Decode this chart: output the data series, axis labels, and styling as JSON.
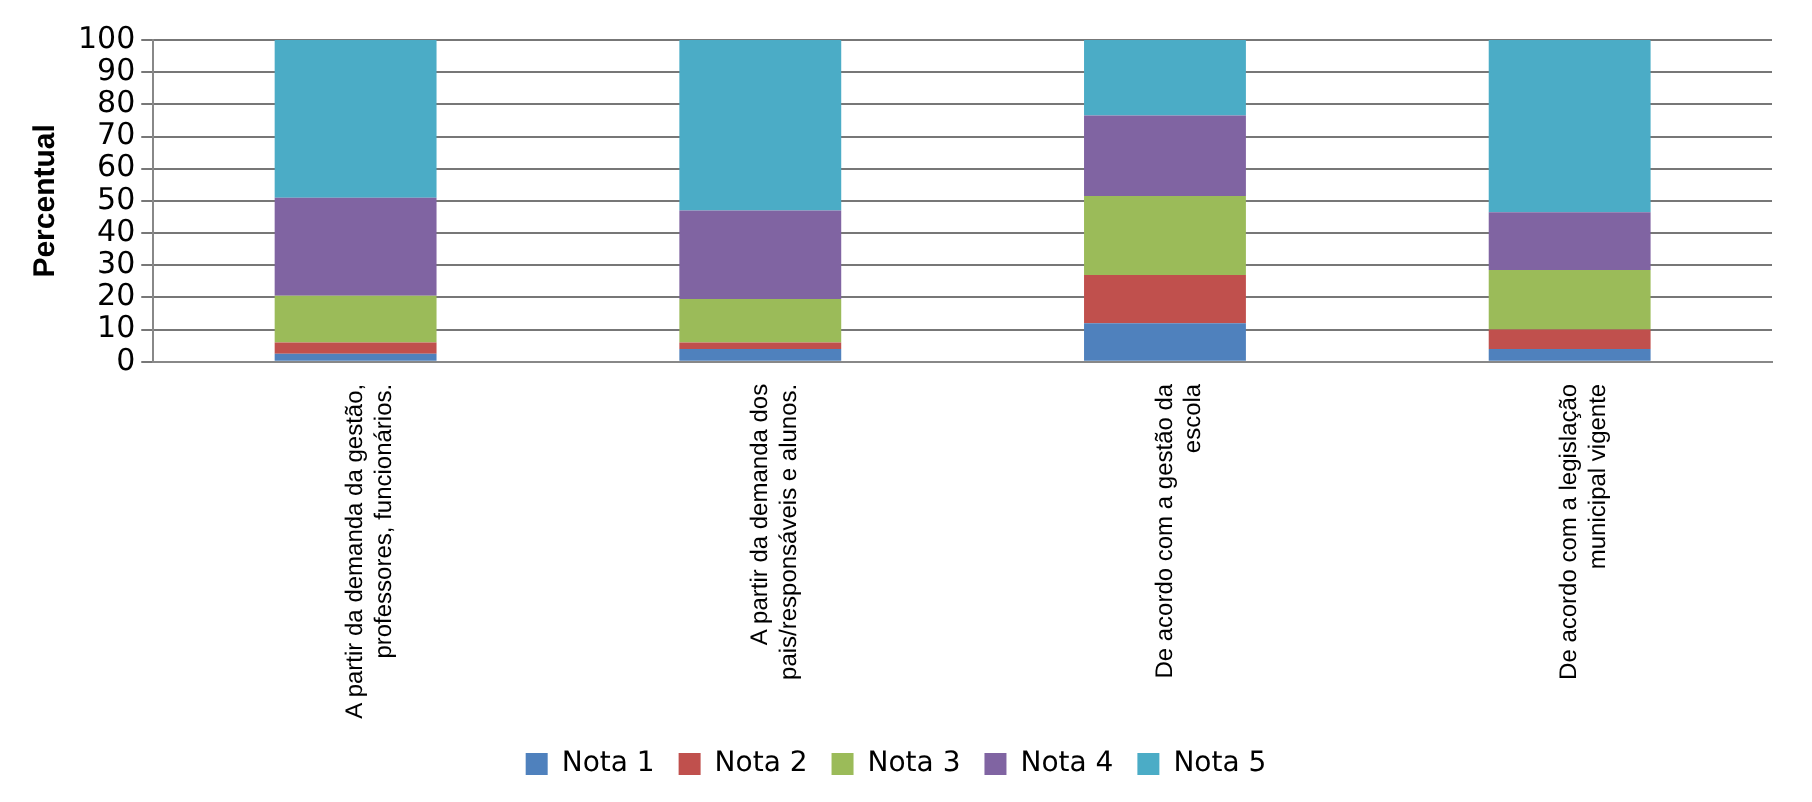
{
  "chart_data": {
    "type": "bar",
    "stacked": true,
    "ylabel": "Percentual",
    "categories": [
      "A partir da demanda da gestão, professores, funcionários.",
      "A partir da demanda dos pais/responsáveis e alunos.",
      "De acordo com a gestão da escola",
      "De acordo com a legislação municipal vigente"
    ],
    "series": [
      {
        "name": "Nota 1",
        "color": "#4f81bd",
        "values": [
          2.5,
          4,
          12,
          4
        ]
      },
      {
        "name": "Nota 2",
        "color": "#c0504d",
        "values": [
          3.5,
          2,
          15,
          6
        ]
      },
      {
        "name": "Nota 3",
        "color": "#9bbb59",
        "values": [
          14.5,
          13.5,
          24.5,
          18.5
        ]
      },
      {
        "name": "Nota 4",
        "color": "#8064a2",
        "values": [
          30.5,
          27.5,
          25,
          18
        ]
      },
      {
        "name": "Nota 5",
        "color": "#4bacc6",
        "values": [
          49,
          53,
          23.5,
          53.5
        ]
      }
    ],
    "ylim": [
      0,
      100
    ],
    "yticks": [
      0,
      10,
      20,
      30,
      40,
      50,
      60,
      70,
      80,
      90,
      100
    ],
    "grid": "y",
    "legend": "bottom"
  }
}
